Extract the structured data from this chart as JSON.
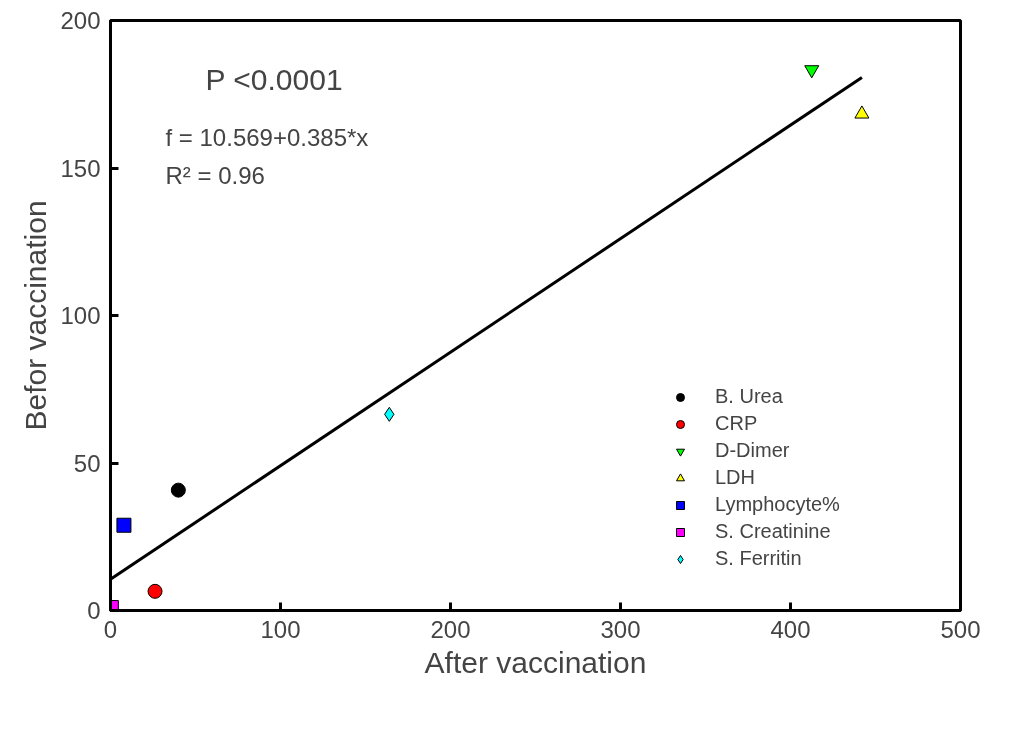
{
  "chart_data": {
    "type": "scatter",
    "xlabel": "After vaccination",
    "ylabel": "Befor vaccination",
    "xlim": [
      0,
      500
    ],
    "xticks": [
      0,
      100,
      200,
      300,
      400,
      500
    ],
    "ylim": [
      0,
      200
    ],
    "yticks": [
      0,
      50,
      100,
      150,
      200
    ],
    "grid": false,
    "legend": "right",
    "annotations": [
      "P <0.0001",
      "f = 10.569+0.385*x",
      "R² = 0.96"
    ],
    "series": [
      {
        "name": "B. Urea",
        "color": "#000000",
        "marker": "circle",
        "x": [
          39.9
        ],
        "values": [
          40.8
        ]
      },
      {
        "name": "CRP",
        "color": "#ff0000",
        "marker": "circle",
        "x": [
          26.2
        ],
        "values": [
          6.5
        ]
      },
      {
        "name": "D-Dimer",
        "color": "#00ff00",
        "marker": "triangle_down",
        "x": [
          412.5
        ],
        "values": [
          183.3
        ]
      },
      {
        "name": "LDH",
        "color": "#ffff00",
        "marker": "triangle",
        "x": [
          442
        ],
        "values": [
          168.3
        ]
      },
      {
        "name": "Lymphocyte%",
        "color": "#0000ff",
        "marker": "square",
        "x": [
          7.9
        ],
        "values": [
          28.9
        ]
      },
      {
        "name": "S. Creatinine",
        "color": "#ff00ff",
        "marker": "square",
        "x": [
          0.5
        ],
        "values": [
          1
        ]
      },
      {
        "name": "S. Ferritin",
        "color": "#00ffff",
        "marker": "diamond",
        "x": [
          164
        ],
        "values": [
          66.5
        ]
      },
      {
        "type": "line",
        "color": "#000000",
        "marker": "none",
        "x": [
          0,
          442
        ],
        "values": [
          10.6,
          180.7
        ]
      }
    ]
  }
}
